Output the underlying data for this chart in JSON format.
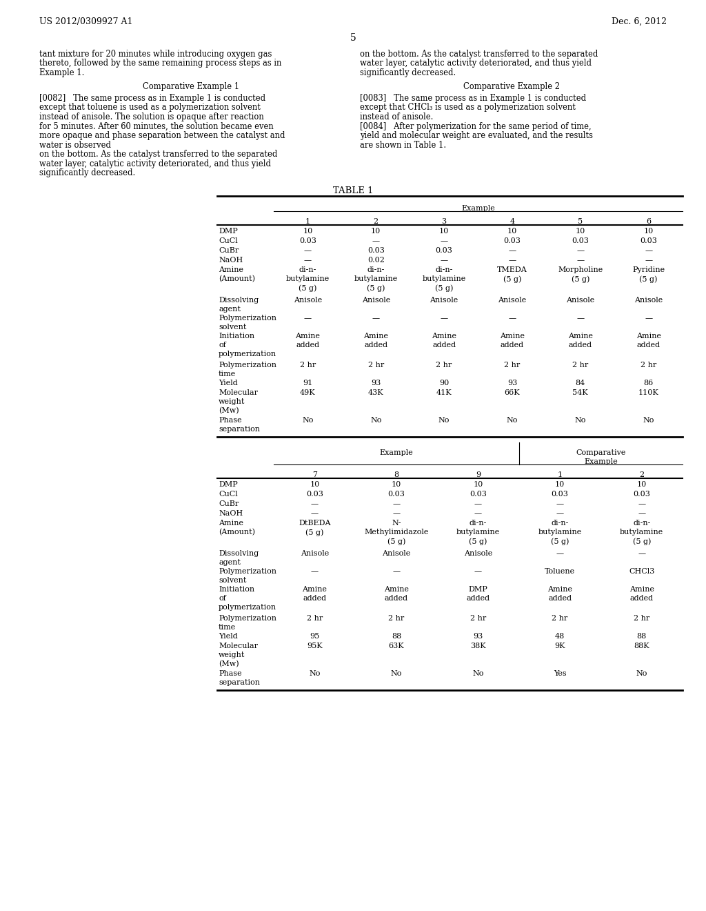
{
  "bg_color": "#ffffff",
  "header_left": "US 2012/0309927 A1",
  "header_right": "Dec. 6, 2012",
  "page_number": "5",
  "table1_title": "TABLE 1",
  "table1_top": {
    "header_group": "Example",
    "cols": [
      "1",
      "2",
      "3",
      "4",
      "5",
      "6"
    ],
    "rows": [
      [
        "DMP",
        "10",
        "10",
        "10",
        "10",
        "10",
        "10"
      ],
      [
        "CuCl",
        "0.03",
        "—",
        "—",
        "0.03",
        "0.03",
        "0.03"
      ],
      [
        "CuBr",
        "—",
        "0.03",
        "0.03",
        "—",
        "—",
        "—"
      ],
      [
        "NaOH",
        "—",
        "0.02",
        "—",
        "—",
        "—",
        "—"
      ],
      [
        "Amine\n(Amount)",
        "di-n-\nbutylamine\n(5 g)",
        "di-n-\nbutylamine\n(5 g)",
        "di-n-\nbutylamine\n(5 g)",
        "TMEDA\n(5 g)",
        "Morpholine\n(5 g)",
        "Pyridine\n(5 g)"
      ],
      [
        "Dissolving\nagent",
        "Anisole",
        "Anisole",
        "Anisole",
        "Anisole",
        "Anisole",
        "Anisole"
      ],
      [
        "Polymerization\nsolvent",
        "—",
        "—",
        "—",
        "—",
        "—",
        "—"
      ],
      [
        "Initiation\nof\npolymerization",
        "Amine\nadded",
        "Amine\nadded",
        "Amine\nadded",
        "Amine\nadded",
        "Amine\nadded",
        "Amine\nadded"
      ],
      [
        "Polymerization\ntime",
        "2 hr",
        "2 hr",
        "2 hr",
        "2 hr",
        "2 hr",
        "2 hr"
      ],
      [
        "Yield",
        "91",
        "93",
        "90",
        "93",
        "84",
        "86"
      ],
      [
        "Molecular\nweight\n(Mw)",
        "49K",
        "43K",
        "41K",
        "66K",
        "54K",
        "110K"
      ],
      [
        "Phase\nseparation",
        "No",
        "No",
        "No",
        "No",
        "No",
        "No"
      ]
    ]
  },
  "table1_bottom": {
    "header_group1": "Example",
    "header_group2": "Comparative\nExample",
    "cols": [
      "7",
      "8",
      "9",
      "1",
      "2"
    ],
    "rows": [
      [
        "DMP",
        "10",
        "10",
        "10",
        "10",
        "10"
      ],
      [
        "CuCl",
        "0.03",
        "0.03",
        "0.03",
        "0.03",
        "0.03"
      ],
      [
        "CuBr",
        "—",
        "—",
        "—",
        "—",
        "—"
      ],
      [
        "NaOH",
        "—",
        "—",
        "—",
        "—",
        "—"
      ],
      [
        "Amine\n(Amount)",
        "DtBEDA\n(5 g)",
        "N-\nMethylimidazole\n(5 g)",
        "di-n-\nbutylamine\n(5 g)",
        "di-n-\nbutylamine\n(5 g)",
        "di-n-\nbutylamine\n(5 g)"
      ],
      [
        "Dissolving\nagent",
        "Anisole",
        "Anisole",
        "Anisole",
        "—",
        "—"
      ],
      [
        "Polymerization\nsolvent",
        "—",
        "—",
        "—",
        "Toluene",
        "CHCl3"
      ],
      [
        "Initiation\nof\npolymerization",
        "Amine\nadded",
        "Amine\nadded",
        "DMP\nadded",
        "Amine\nadded",
        "Amine\nadded"
      ],
      [
        "Polymerization\ntime",
        "2 hr",
        "2 hr",
        "2 hr",
        "2 hr",
        "2 hr"
      ],
      [
        "Yield",
        "95",
        "88",
        "93",
        "48",
        "88"
      ],
      [
        "Molecular\nweight\n(Mw)",
        "95K",
        "63K",
        "38K",
        "9K",
        "88K"
      ],
      [
        "Phase\nseparation",
        "No",
        "No",
        "No",
        "Yes",
        "No"
      ]
    ]
  },
  "left_col_lines": [
    "tant mixture for 20 minutes while introducing oxygen gas",
    "thereto, followed by the same remaining process steps as in",
    "Example 1."
  ],
  "left_comp_ex1_title": "Comparative Example 1",
  "left_para_0082": "[0082]   The same process as in Example 1 is conducted except that toluene is used as a polymerization solvent instead of anisole. The solution is opaque after reaction for 5 minutes. After 60 minutes, the solution became even more opaque and phase separation between the catalyst and water is observed",
  "left_para_0082b": "on the bottom. As the catalyst transferred to the separated water layer, catalytic activity deteriorated, and thus yield significantly decreased.",
  "right_col_lines": [
    "on the bottom. As the catalyst transferred to the separated",
    "water layer, catalytic activity deteriorated, and thus yield",
    "significantly decreased."
  ],
  "right_comp_ex2_title": "Comparative Example 2",
  "right_para_0083": "[0083]   The same process as in Example 1 is conducted except that CHCl₃ is used as a polymerization solvent instead of anisole.",
  "right_para_0084": "[0084]   After polymerization for the same period of time, yield and molecular weight are evaluated, and the results are shown in Table 1."
}
